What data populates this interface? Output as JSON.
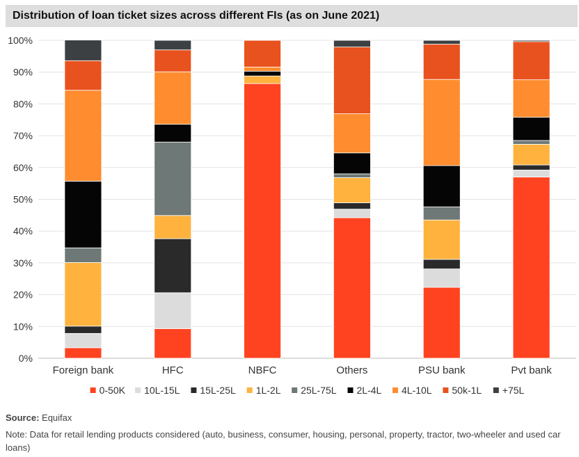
{
  "chart_data": {
    "type": "bar",
    "stacked": true,
    "title": "Distribution of loan ticket sizes across different FIs (as on June 2021)",
    "categories": [
      "Foreign bank",
      "HFC",
      "NBFC",
      "Others",
      "PSU bank",
      "Pvt bank"
    ],
    "ylim": [
      0,
      100
    ],
    "yticks": [
      "0%",
      "10%",
      "20%",
      "30%",
      "40%",
      "50%",
      "60%",
      "70%",
      "80%",
      "90%",
      "100%"
    ],
    "grid": true,
    "legend_position": "bottom",
    "series": [
      {
        "name": "0-50K",
        "color": "#ff4321",
        "values": [
          3.3,
          9.3,
          86.4,
          44.2,
          22.3,
          57.0
        ]
      },
      {
        "name": "10L-15L",
        "color": "#dcdcdc",
        "values": [
          4.5,
          11.3,
          0.0,
          2.7,
          5.8,
          2.2
        ]
      },
      {
        "name": "15L-25L",
        "color": "#2a2a2a",
        "values": [
          2.3,
          17.0,
          0.0,
          2.0,
          3.0,
          1.6
        ]
      },
      {
        "name": "1L-2L",
        "color": "#ffb23e",
        "values": [
          20.0,
          7.3,
          2.4,
          7.9,
          12.4,
          6.5
        ]
      },
      {
        "name": "25L-75L",
        "color": "#6e7876",
        "values": [
          4.6,
          23.1,
          0.0,
          1.2,
          4.1,
          1.2
        ]
      },
      {
        "name": "2L-4L",
        "color": "#050505",
        "values": [
          21.0,
          5.6,
          1.5,
          6.6,
          13.0,
          7.3
        ]
      },
      {
        "name": "4L-10L",
        "color": "#ff8c2e",
        "values": [
          28.6,
          16.5,
          1.3,
          12.3,
          27.1,
          11.8
        ]
      },
      {
        "name": "50k-1L",
        "color": "#e8521e",
        "values": [
          9.3,
          6.9,
          8.4,
          21.0,
          11.1,
          12.0
        ]
      },
      {
        "name": "+75L",
        "color": "#3d4042",
        "values": [
          6.5,
          3.0,
          0.0,
          2.1,
          1.2,
          0.4
        ]
      }
    ]
  },
  "footer": {
    "source_label": "Source:",
    "source_value": " Equifax",
    "note": "Note: Data for retail lending products considered (auto, business, consumer, housing, personal, property, tractor, two-wheeler and used car loans)"
  }
}
